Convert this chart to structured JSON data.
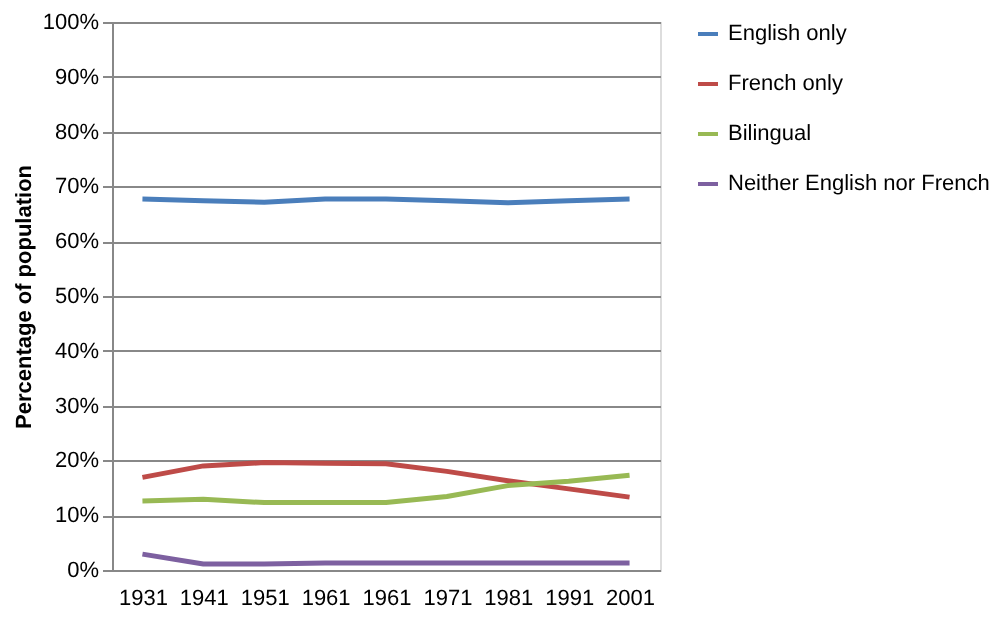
{
  "chart_data": {
    "type": "line",
    "ylabel": "Percentage of population",
    "categories": [
      "1931",
      "1941",
      "1951",
      "1961",
      "1961",
      "1971",
      "1981",
      "1991",
      "2001"
    ],
    "series": [
      {
        "name": "English only",
        "color": "#4a7ebb",
        "values": [
          67.7,
          67.4,
          67.1,
          67.7,
          67.7,
          67.4,
          67.0,
          67.4,
          67.7
        ]
      },
      {
        "name": "French only",
        "color": "#be4b48",
        "values": [
          16.9,
          19.0,
          19.6,
          19.5,
          19.4,
          18.0,
          16.3,
          14.8,
          13.3
        ]
      },
      {
        "name": "Bilingual",
        "color": "#98b954",
        "values": [
          12.6,
          12.9,
          12.3,
          12.3,
          12.3,
          13.4,
          15.4,
          16.2,
          17.3
        ]
      },
      {
        "name": "Neither English nor French",
        "color": "#7d60a0",
        "values": [
          2.9,
          1.1,
          1.1,
          1.3,
          1.3,
          1.3,
          1.3,
          1.3,
          1.3
        ]
      }
    ],
    "ylim": [
      0,
      100
    ],
    "yticks": [
      {
        "value": 0,
        "label": "0%"
      },
      {
        "value": 10,
        "label": "10%"
      },
      {
        "value": 20,
        "label": "20%"
      },
      {
        "value": 30,
        "label": "30%"
      },
      {
        "value": 40,
        "label": "40%"
      },
      {
        "value": 50,
        "label": "50%"
      },
      {
        "value": 60,
        "label": "60%"
      },
      {
        "value": 70,
        "label": "70%"
      },
      {
        "value": 80,
        "label": "80%"
      },
      {
        "value": 90,
        "label": "90%"
      },
      {
        "value": 100,
        "label": "100%"
      }
    ],
    "grid": "y",
    "legend": "right",
    "marker": "none",
    "line_style": "solid"
  }
}
